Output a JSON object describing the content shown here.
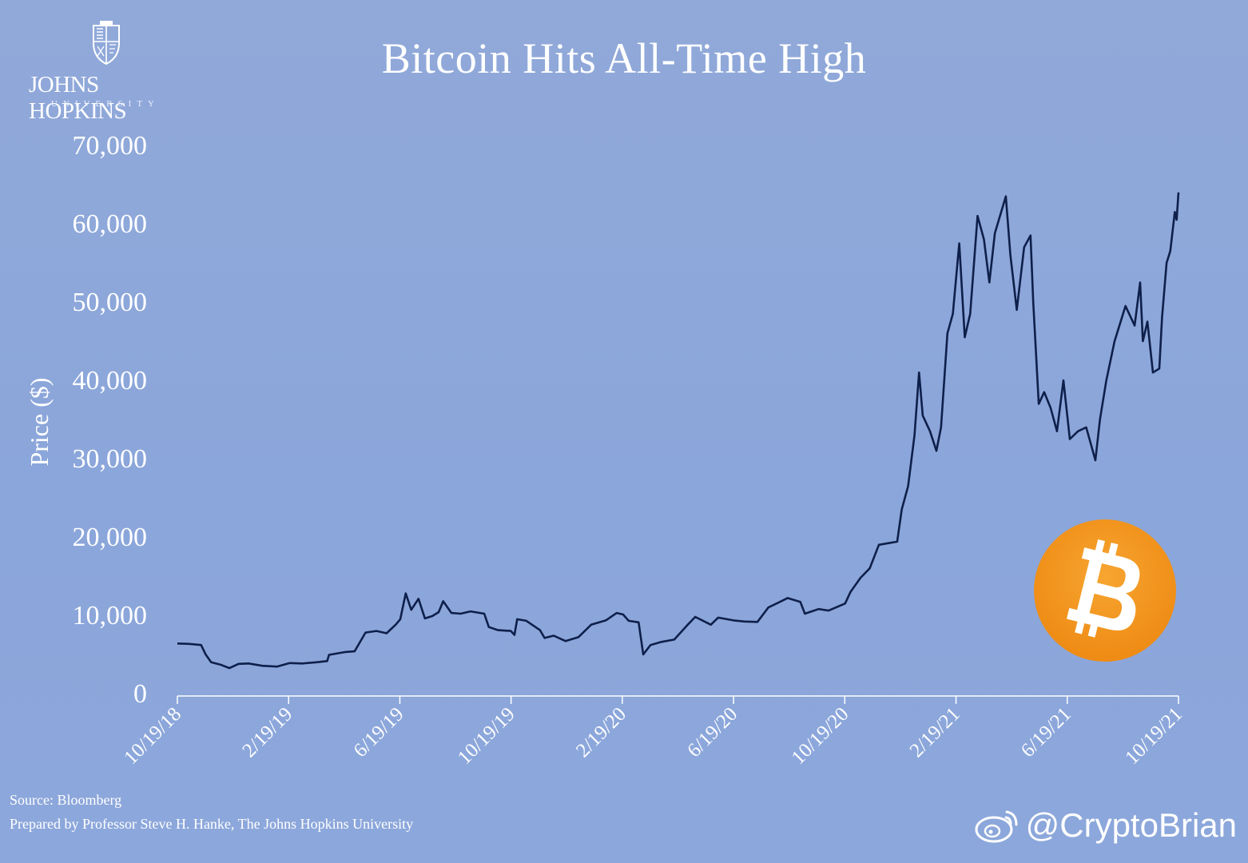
{
  "header": {
    "logo_line1": "JOHNS HOPKINS",
    "logo_line2": "UNIVERSITY"
  },
  "footer": {
    "source": "Source: Bloomberg",
    "prepared": "Prepared by Professor Steve H. Hanke, The Johns Hopkins University",
    "watermark": "@CryptoBrian"
  },
  "colors": {
    "background": "#8CA7DB",
    "line": "#0E1F4A",
    "text": "#FFFFFF",
    "bitcoin_orange": "#F2931A"
  },
  "icons": [
    "johns-hopkins-shield-icon",
    "weibo-icon",
    "bitcoin-icon"
  ],
  "chart_data": {
    "type": "line",
    "title": "Bitcoin Hits All-Time High",
    "ylabel": "Price ($)",
    "xlabel": "",
    "ylim": [
      0,
      70000
    ],
    "yticks": [
      0,
      10000,
      20000,
      30000,
      40000,
      50000,
      60000,
      70000
    ],
    "ytick_labels": [
      "0",
      "10,000",
      "20,000",
      "30,000",
      "40,000",
      "50,000",
      "60,000",
      "70,000"
    ],
    "xticks": [
      "10/19/18",
      "2/19/19",
      "6/19/19",
      "10/19/19",
      "2/19/20",
      "6/19/20",
      "10/19/20",
      "2/19/21",
      "6/19/21",
      "10/19/21"
    ],
    "grid": false,
    "legend": "none",
    "series": [
      {
        "points": [
          [
            "2018-10-19",
            6400
          ],
          [
            "2018-11-01",
            6350
          ],
          [
            "2018-11-14",
            6200
          ],
          [
            "2018-11-19",
            5000
          ],
          [
            "2018-11-25",
            4000
          ],
          [
            "2018-12-05",
            3700
          ],
          [
            "2018-12-15",
            3250
          ],
          [
            "2018-12-25",
            3800
          ],
          [
            "2019-01-05",
            3850
          ],
          [
            "2019-01-20",
            3550
          ],
          [
            "2019-02-05",
            3450
          ],
          [
            "2019-02-19",
            3900
          ],
          [
            "2019-03-05",
            3850
          ],
          [
            "2019-03-20",
            4000
          ],
          [
            "2019-04-01",
            4150
          ],
          [
            "2019-04-03",
            4950
          ],
          [
            "2019-04-20",
            5300
          ],
          [
            "2019-05-01",
            5400
          ],
          [
            "2019-05-13",
            7800
          ],
          [
            "2019-05-25",
            8000
          ],
          [
            "2019-06-05",
            7700
          ],
          [
            "2019-06-15",
            8800
          ],
          [
            "2019-06-20",
            9500
          ],
          [
            "2019-06-26",
            12800
          ],
          [
            "2019-07-02",
            10700
          ],
          [
            "2019-07-10",
            12100
          ],
          [
            "2019-07-17",
            9600
          ],
          [
            "2019-07-25",
            9900
          ],
          [
            "2019-08-01",
            10400
          ],
          [
            "2019-08-06",
            11800
          ],
          [
            "2019-08-15",
            10300
          ],
          [
            "2019-08-25",
            10200
          ],
          [
            "2019-09-05",
            10500
          ],
          [
            "2019-09-20",
            10200
          ],
          [
            "2019-09-25",
            8500
          ],
          [
            "2019-10-05",
            8100
          ],
          [
            "2019-10-19",
            8000
          ],
          [
            "2019-10-23",
            7500
          ],
          [
            "2019-10-26",
            9500
          ],
          [
            "2019-11-05",
            9300
          ],
          [
            "2019-11-20",
            8100
          ],
          [
            "2019-11-25",
            7100
          ],
          [
            "2019-12-05",
            7400
          ],
          [
            "2019-12-18",
            6700
          ],
          [
            "2020-01-01",
            7200
          ],
          [
            "2020-01-15",
            8800
          ],
          [
            "2020-01-31",
            9350
          ],
          [
            "2020-02-12",
            10300
          ],
          [
            "2020-02-19",
            10100
          ],
          [
            "2020-02-25",
            9300
          ],
          [
            "2020-03-07",
            9100
          ],
          [
            "2020-03-12",
            5000
          ],
          [
            "2020-03-20",
            6200
          ],
          [
            "2020-04-01",
            6600
          ],
          [
            "2020-04-15",
            6900
          ],
          [
            "2020-04-29",
            8700
          ],
          [
            "2020-05-08",
            9800
          ],
          [
            "2020-05-25",
            8800
          ],
          [
            "2020-06-02",
            9700
          ],
          [
            "2020-06-19",
            9350
          ],
          [
            "2020-07-01",
            9200
          ],
          [
            "2020-07-15",
            9150
          ],
          [
            "2020-07-27",
            11000
          ],
          [
            "2020-08-10",
            11800
          ],
          [
            "2020-08-17",
            12200
          ],
          [
            "2020-08-31",
            11700
          ],
          [
            "2020-09-05",
            10200
          ],
          [
            "2020-09-20",
            10800
          ],
          [
            "2020-10-01",
            10600
          ],
          [
            "2020-10-19",
            11500
          ],
          [
            "2020-10-25",
            13000
          ],
          [
            "2020-11-05",
            14800
          ],
          [
            "2020-11-15",
            16000
          ],
          [
            "2020-11-25",
            19000
          ],
          [
            "2020-12-05",
            19200
          ],
          [
            "2020-12-15",
            19400
          ],
          [
            "2020-12-20",
            23500
          ],
          [
            "2020-12-27",
            26500
          ],
          [
            "2021-01-03",
            33000
          ],
          [
            "2021-01-08",
            41000
          ],
          [
            "2021-01-12",
            35500
          ],
          [
            "2021-01-20",
            33500
          ],
          [
            "2021-01-27",
            31000
          ],
          [
            "2021-02-01",
            34000
          ],
          [
            "2021-02-08",
            46000
          ],
          [
            "2021-02-14",
            48500
          ],
          [
            "2021-02-21",
            57500
          ],
          [
            "2021-02-27",
            45500
          ],
          [
            "2021-03-05",
            48500
          ],
          [
            "2021-03-13",
            61000
          ],
          [
            "2021-03-20",
            58000
          ],
          [
            "2021-03-26",
            52500
          ],
          [
            "2021-04-01",
            58800
          ],
          [
            "2021-04-13",
            63500
          ],
          [
            "2021-04-18",
            56000
          ],
          [
            "2021-04-25",
            49000
          ],
          [
            "2021-05-03",
            57000
          ],
          [
            "2021-05-10",
            58500
          ],
          [
            "2021-05-13",
            50000
          ],
          [
            "2021-05-19",
            37000
          ],
          [
            "2021-05-25",
            38500
          ],
          [
            "2021-06-01",
            36500
          ],
          [
            "2021-06-08",
            33500
          ],
          [
            "2021-06-15",
            40000
          ],
          [
            "2021-06-22",
            32500
          ],
          [
            "2021-07-01",
            33500
          ],
          [
            "2021-07-10",
            34000
          ],
          [
            "2021-07-20",
            29800
          ],
          [
            "2021-07-25",
            35000
          ],
          [
            "2021-08-01",
            40000
          ],
          [
            "2021-08-10",
            45000
          ],
          [
            "2021-08-22",
            49500
          ],
          [
            "2021-09-01",
            47000
          ],
          [
            "2021-09-07",
            52500
          ],
          [
            "2021-09-10",
            45000
          ],
          [
            "2021-09-15",
            47500
          ],
          [
            "2021-09-21",
            41000
          ],
          [
            "2021-09-28",
            41500
          ],
          [
            "2021-10-01",
            48000
          ],
          [
            "2021-10-06",
            55000
          ],
          [
            "2021-10-10",
            56500
          ],
          [
            "2021-10-15",
            61500
          ],
          [
            "2021-10-17",
            60500
          ],
          [
            "2021-10-19",
            64000
          ]
        ]
      }
    ]
  }
}
